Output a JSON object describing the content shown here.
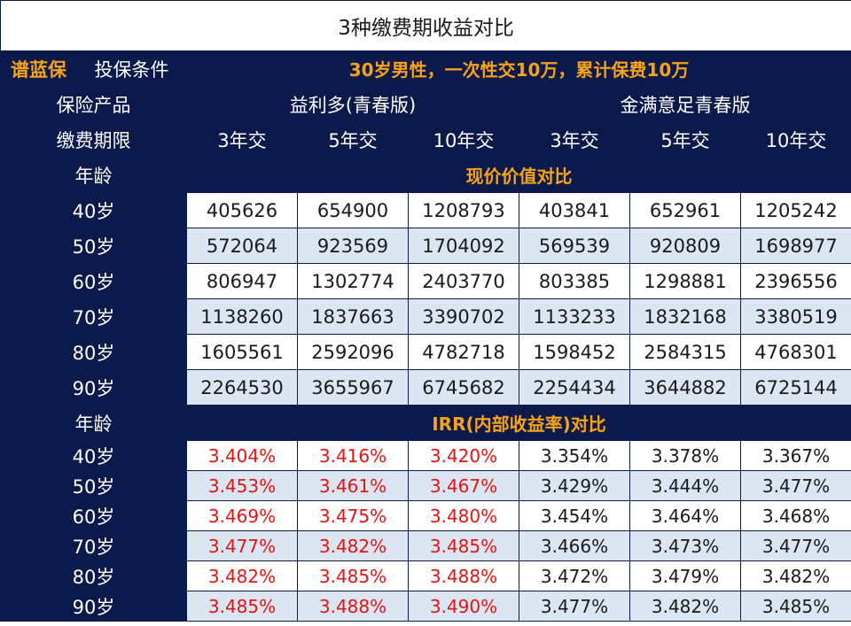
{
  "title": "3种缴费期收益对比",
  "brand": "谱蓝保",
  "condition_label": "投保条件",
  "condition_text": "30岁男性，一次性交10万，累计保费10万",
  "product_label": "保险产品",
  "products": [
    "益利多(青春版)",
    "金满意足青春版"
  ],
  "period_label": "缴费期限",
  "periods": [
    "3年交",
    "5年交",
    "10年交",
    "3年交",
    "5年交",
    "10年交"
  ],
  "age_label": "年龄",
  "cash_value": {
    "title": "现价价值对比",
    "rows": [
      {
        "age": "40岁",
        "values": [
          "405626",
          "654900",
          "1208793",
          "403841",
          "652961",
          "1205242"
        ]
      },
      {
        "age": "50岁",
        "values": [
          "572064",
          "923569",
          "1704092",
          "569539",
          "920809",
          "1698977"
        ]
      },
      {
        "age": "60岁",
        "values": [
          "806947",
          "1302774",
          "2403770",
          "803385",
          "1298881",
          "2396556"
        ]
      },
      {
        "age": "70岁",
        "values": [
          "1138260",
          "1837663",
          "3390702",
          "1133233",
          "1832168",
          "3380519"
        ]
      },
      {
        "age": "80岁",
        "values": [
          "1605561",
          "2592096",
          "4782718",
          "1598452",
          "2584315",
          "4768301"
        ]
      },
      {
        "age": "90岁",
        "values": [
          "2264530",
          "3655967",
          "6745682",
          "2254434",
          "3644882",
          "6725144"
        ]
      }
    ]
  },
  "irr": {
    "title": "IRR(内部收益率)对比",
    "rows": [
      {
        "age": "40岁",
        "values": [
          "3.404%",
          "3.416%",
          "3.420%",
          "3.354%",
          "3.378%",
          "3.367%"
        ]
      },
      {
        "age": "50岁",
        "values": [
          "3.453%",
          "3.461%",
          "3.467%",
          "3.429%",
          "3.444%",
          "3.477%"
        ]
      },
      {
        "age": "60岁",
        "values": [
          "3.469%",
          "3.475%",
          "3.480%",
          "3.454%",
          "3.464%",
          "3.468%"
        ]
      },
      {
        "age": "70岁",
        "values": [
          "3.477%",
          "3.482%",
          "3.485%",
          "3.466%",
          "3.473%",
          "3.477%"
        ]
      },
      {
        "age": "80岁",
        "values": [
          "3.482%",
          "3.485%",
          "3.488%",
          "3.472%",
          "3.479%",
          "3.482%"
        ]
      },
      {
        "age": "90岁",
        "values": [
          "3.485%",
          "3.488%",
          "3.490%",
          "3.477%",
          "3.482%",
          "3.485%"
        ]
      }
    ]
  },
  "colors": {
    "header_bg": "#0b1a4a",
    "accent": "#f7a21b",
    "highlight_red": "#e31414",
    "alt_row": "#dce6f2"
  }
}
